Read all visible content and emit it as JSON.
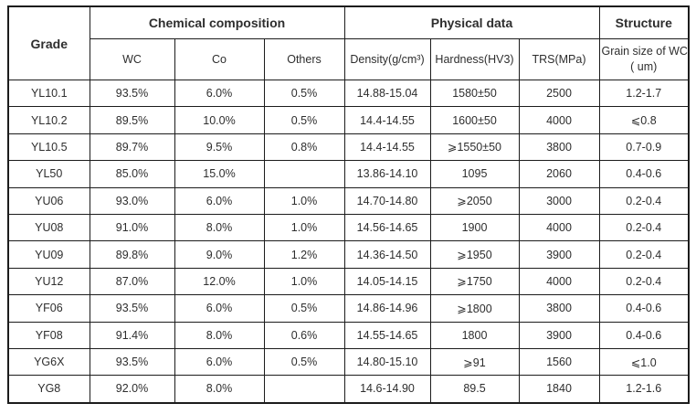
{
  "colors": {
    "background": "#ffffff",
    "border": "#1c1c1c",
    "text": "#2e2e2e"
  },
  "table": {
    "header": {
      "grade": "Grade",
      "chemical_group": "Chemical composition",
      "physical_group": "Physical data",
      "structure_group": "Structure",
      "wc": "WC",
      "co": "Co",
      "others": "Others",
      "density": "Density(g/cm³)",
      "hardness": "Hardness(HV3)",
      "trs": "TRS(MPa)",
      "grain_line1": "Grain size of WC",
      "grain_line2": "( um)"
    },
    "rows": [
      {
        "grade": "YL10.1",
        "cells": [
          "93.5%",
          "6.0%",
          "0.5%",
          "14.88-15.04",
          "1580±50",
          "2500",
          "1.2-1.7"
        ]
      },
      {
        "grade": "YL10.2",
        "cells": [
          "89.5%",
          "10.0%",
          "0.5%",
          "14.4-14.55",
          "1600±50",
          "4000",
          "⩽0.8"
        ]
      },
      {
        "grade": "YL10.5",
        "cells": [
          "89.7%",
          "9.5%",
          "0.8%",
          "14.4-14.55",
          "⩾1550±50",
          "3800",
          "0.7-0.9"
        ]
      },
      {
        "grade": "YL50",
        "cells": [
          "85.0%",
          "15.0%",
          "",
          "13.86-14.10",
          "1095",
          "2060",
          "0.4-0.6"
        ]
      },
      {
        "grade": "YU06",
        "cells": [
          "93.0%",
          "6.0%",
          "1.0%",
          "14.70-14.80",
          "⩾2050",
          "3000",
          "0.2-0.4"
        ]
      },
      {
        "grade": "YU08",
        "cells": [
          "91.0%",
          "8.0%",
          "1.0%",
          "14.56-14.65",
          "1900",
          "4000",
          "0.2-0.4"
        ]
      },
      {
        "grade": "YU09",
        "cells": [
          "89.8%",
          "9.0%",
          "1.2%",
          "14.36-14.50",
          "⩾1950",
          "3900",
          "0.2-0.4"
        ]
      },
      {
        "grade": "YU12",
        "cells": [
          "87.0%",
          "12.0%",
          "1.0%",
          "14.05-14.15",
          "⩾1750",
          "4000",
          "0.2-0.4"
        ]
      },
      {
        "grade": "YF06",
        "cells": [
          "93.5%",
          "6.0%",
          "0.5%",
          "14.86-14.96",
          "⩾1800",
          "3800",
          "0.4-0.6"
        ]
      },
      {
        "grade": "YF08",
        "cells": [
          "91.4%",
          "8.0%",
          "0.6%",
          "14.55-14.65",
          "1800",
          "3900",
          "0.4-0.6"
        ]
      },
      {
        "grade": "YG6X",
        "cells": [
          "93.5%",
          "6.0%",
          "0.5%",
          "14.80-15.10",
          "⩾91",
          "1560",
          "⩽1.0"
        ]
      },
      {
        "grade": "YG8",
        "cells": [
          "92.0%",
          "8.0%",
          "",
          "14.6-14.90",
          "89.5",
          "1840",
          "1.2-1.6"
        ]
      }
    ]
  }
}
